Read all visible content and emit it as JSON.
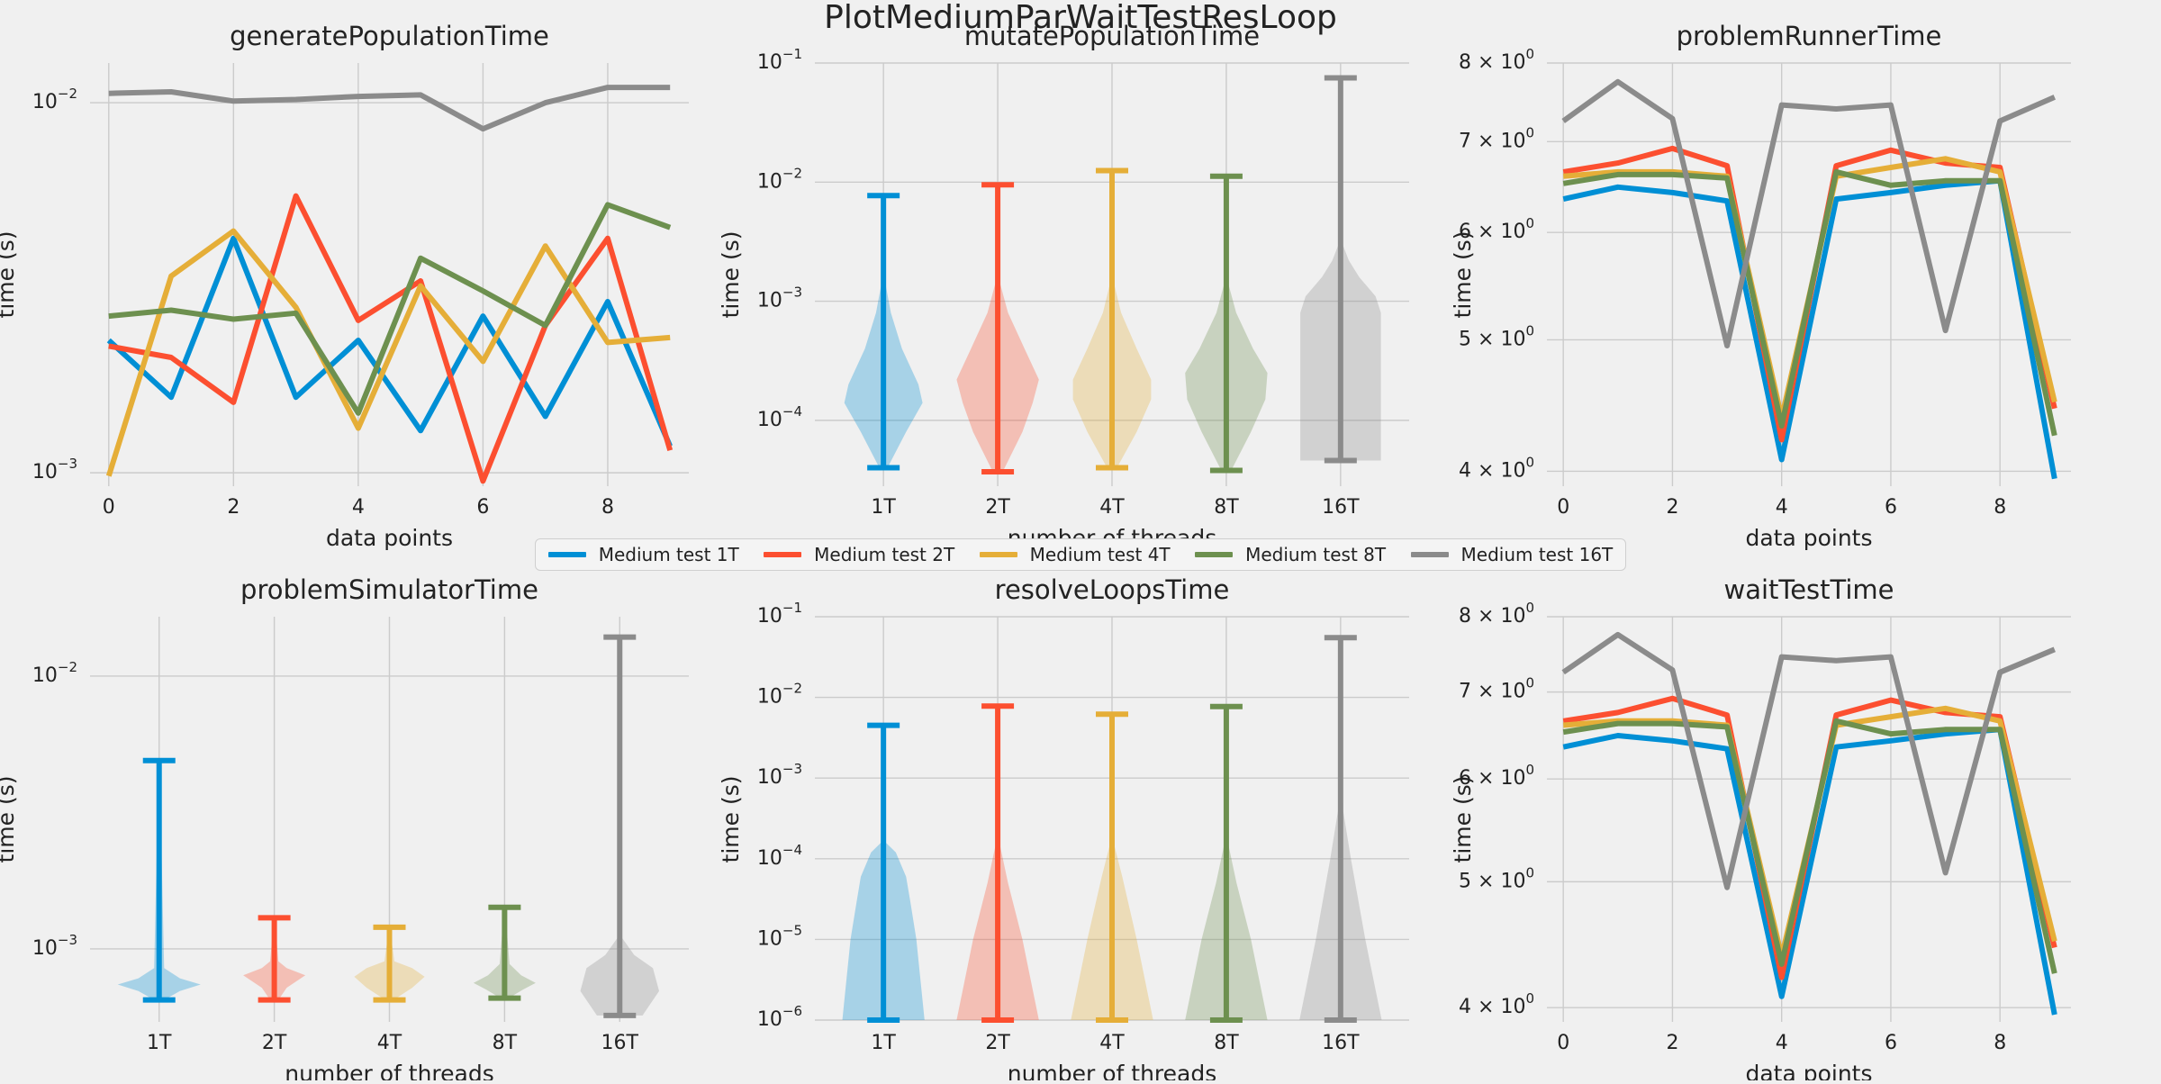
{
  "figure": {
    "title": "PlotMediumParWaitTestResLoop",
    "background": "#f0f0f0",
    "grid_color": "#cbcbcb"
  },
  "legend": {
    "placement": "center",
    "entries": [
      {
        "label": "Medium test 1T",
        "color": "#008fd5"
      },
      {
        "label": "Medium test 2T",
        "color": "#fc4f30"
      },
      {
        "label": "Medium test 4T",
        "color": "#e5ae38"
      },
      {
        "label": "Medium test 8T",
        "color": "#6d904f"
      },
      {
        "label": "Medium test 16T",
        "color": "#8b8b8b"
      }
    ]
  },
  "chart_data": [
    {
      "type": "line",
      "title": "generatePopulationTime",
      "xlabel": "data points",
      "ylabel": "time (s)",
      "yscale": "log",
      "xlim": [
        -0.3,
        9.3
      ],
      "ylim": [
        0.00092,
        0.0128
      ],
      "xticks": [
        0,
        2,
        4,
        6,
        8
      ],
      "yticks": [
        {
          "value": 0.001,
          "base": "10",
          "exp": "−3"
        },
        {
          "value": 0.01,
          "base": "10",
          "exp": "−2"
        }
      ],
      "grid": true,
      "x": [
        0,
        1,
        2,
        3,
        4,
        5,
        6,
        7,
        8,
        9
      ],
      "series": [
        {
          "name": "Medium test 1T",
          "color": "#008fd5",
          "values": [
            0.00228,
            0.0016,
            0.0043,
            0.0016,
            0.00228,
            0.0013,
            0.00265,
            0.00142,
            0.0029,
            0.00118
          ]
        },
        {
          "name": "Medium test 2T",
          "color": "#fc4f30",
          "values": [
            0.0022,
            0.00205,
            0.00155,
            0.0056,
            0.00258,
            0.0033,
            0.00095,
            0.0025,
            0.0043,
            0.00115
          ]
        },
        {
          "name": "Medium test 4T",
          "color": "#e5ae38",
          "values": [
            0.00098,
            0.0034,
            0.0045,
            0.0028,
            0.00132,
            0.0032,
            0.002,
            0.0041,
            0.00225,
            0.00232
          ]
        },
        {
          "name": "Medium test 8T",
          "color": "#6d904f",
          "values": [
            0.00265,
            0.00275,
            0.0026,
            0.0027,
            0.00145,
            0.0038,
            0.0031,
            0.0025,
            0.0053,
            0.0046
          ]
        },
        {
          "name": "Medium test 16T",
          "color": "#8b8b8b",
          "values": [
            0.0106,
            0.0107,
            0.0101,
            0.0102,
            0.0104,
            0.0105,
            0.0085,
            0.01,
            0.011,
            0.011
          ]
        }
      ]
    },
    {
      "type": "violin",
      "title": "mutatePopulationTime",
      "xlabel": "number of threads",
      "ylabel": "time (s)",
      "yscale": "log",
      "categories": [
        "1T",
        "2T",
        "4T",
        "8T",
        "16T"
      ],
      "ylim": [
        2.8e-05,
        0.1
      ],
      "yticks": [
        {
          "value": 0.0001,
          "base": "10",
          "exp": "−4"
        },
        {
          "value": 0.001,
          "base": "10",
          "exp": "−3"
        },
        {
          "value": 0.01,
          "base": "10",
          "exp": "−2"
        },
        {
          "value": 0.1,
          "base": "10",
          "exp": "−1"
        }
      ],
      "grid": true,
      "series": [
        {
          "name": "1T",
          "color": "#008fd5",
          "min": 4e-05,
          "max": 0.0077,
          "profile": [
            [
              4e-05,
              0.1
            ],
            [
              8e-05,
              0.55
            ],
            [
              0.00014,
              0.95
            ],
            [
              0.0002,
              0.85
            ],
            [
              0.0004,
              0.45
            ],
            [
              0.0008,
              0.18
            ],
            [
              0.0014,
              0.05
            ],
            [
              0.0077,
              0.01
            ]
          ]
        },
        {
          "name": "2T",
          "color": "#fc4f30",
          "min": 3.7e-05,
          "max": 0.0095,
          "profile": [
            [
              3.7e-05,
              0.12
            ],
            [
              8e-05,
              0.6
            ],
            [
              0.00014,
              0.85
            ],
            [
              0.00022,
              1.0
            ],
            [
              0.0004,
              0.65
            ],
            [
              0.0008,
              0.25
            ],
            [
              0.0014,
              0.06
            ],
            [
              0.0095,
              0.01
            ]
          ]
        },
        {
          "name": "4T",
          "color": "#e5ae38",
          "min": 4e-05,
          "max": 0.0125,
          "profile": [
            [
              4e-05,
              0.12
            ],
            [
              8e-05,
              0.6
            ],
            [
              0.00015,
              0.95
            ],
            [
              0.00022,
              0.95
            ],
            [
              0.0004,
              0.6
            ],
            [
              0.0008,
              0.22
            ],
            [
              0.0014,
              0.05
            ],
            [
              0.0125,
              0.01
            ]
          ]
        },
        {
          "name": "8T",
          "color": "#6d904f",
          "min": 3.8e-05,
          "max": 0.0112,
          "profile": [
            [
              3.8e-05,
              0.12
            ],
            [
              8e-05,
              0.6
            ],
            [
              0.00015,
              0.95
            ],
            [
              0.00025,
              1.0
            ],
            [
              0.0004,
              0.65
            ],
            [
              0.0008,
              0.24
            ],
            [
              0.0014,
              0.05
            ],
            [
              0.0112,
              0.01
            ]
          ]
        },
        {
          "name": "16T",
          "color": "#8b8b8b",
          "min": 4.6e-05,
          "max": 0.075,
          "profile": [
            [
              4.6e-05,
              0.98
            ],
            [
              0.0008,
              0.98
            ],
            [
              0.0011,
              0.85
            ],
            [
              0.0016,
              0.45
            ],
            [
              0.0022,
              0.2
            ],
            [
              0.003,
              0.05
            ],
            [
              0.075,
              0.01
            ]
          ]
        }
      ]
    },
    {
      "type": "line",
      "title": "problemRunnerTime",
      "xlabel": "data points",
      "ylabel": "time (s)",
      "yscale": "log",
      "xlim": [
        -0.3,
        9.3
      ],
      "ylim": [
        3.9,
        8.0
      ],
      "xticks": [
        0,
        2,
        4,
        6,
        8
      ],
      "yticks": [
        {
          "value": 4,
          "base": "4 × 10",
          "exp": "0"
        },
        {
          "value": 5,
          "base": "5 × 10",
          "exp": "0"
        },
        {
          "value": 6,
          "base": "6 × 10",
          "exp": "0"
        },
        {
          "value": 7,
          "base": "7 × 10",
          "exp": "0"
        },
        {
          "value": 8,
          "base": "8 × 10",
          "exp": "0"
        }
      ],
      "grid": true,
      "x": [
        0,
        1,
        2,
        3,
        4,
        5,
        6,
        7,
        8,
        9
      ],
      "series": [
        {
          "name": "Medium test 1T",
          "color": "#008fd5",
          "values": [
            6.35,
            6.48,
            6.42,
            6.33,
            4.08,
            6.35,
            6.42,
            6.5,
            6.55,
            3.95
          ]
        },
        {
          "name": "Medium test 2T",
          "color": "#fc4f30",
          "values": [
            6.65,
            6.75,
            6.92,
            6.72,
            4.22,
            6.72,
            6.9,
            6.75,
            6.7,
            4.45
          ]
        },
        {
          "name": "Medium test 4T",
          "color": "#e5ae38",
          "values": [
            6.6,
            6.65,
            6.65,
            6.6,
            4.38,
            6.6,
            6.7,
            6.8,
            6.65,
            4.5
          ]
        },
        {
          "name": "Medium test 8T",
          "color": "#6d904f",
          "values": [
            6.52,
            6.62,
            6.62,
            6.58,
            4.32,
            6.65,
            6.5,
            6.55,
            6.55,
            4.25
          ]
        },
        {
          "name": "Medium test 16T",
          "color": "#8b8b8b",
          "values": [
            7.25,
            7.75,
            7.28,
            4.95,
            7.45,
            7.4,
            7.45,
            5.08,
            7.25,
            7.55
          ]
        }
      ]
    },
    {
      "type": "violin",
      "title": "problemSimulatorTime",
      "xlabel": "number of threads",
      "ylabel": "time (s)",
      "yscale": "log",
      "categories": [
        "1T",
        "2T",
        "4T",
        "8T",
        "16T"
      ],
      "ylim": [
        0.00054,
        0.0165
      ],
      "yticks": [
        {
          "value": 0.001,
          "base": "10",
          "exp": "−3"
        },
        {
          "value": 0.01,
          "base": "10",
          "exp": "−2"
        }
      ],
      "grid": true,
      "series": [
        {
          "name": "1T",
          "color": "#008fd5",
          "min": 0.00065,
          "max": 0.0049,
          "profile": [
            [
              0.00065,
              0.12
            ],
            [
              0.0007,
              0.5
            ],
            [
              0.00074,
              1.0
            ],
            [
              0.00078,
              0.5
            ],
            [
              0.00085,
              0.12
            ],
            [
              0.0049,
              0.01
            ]
          ]
        },
        {
          "name": "2T",
          "color": "#fc4f30",
          "min": 0.00065,
          "max": 0.0013,
          "profile": [
            [
              0.00065,
              0.1
            ],
            [
              0.00072,
              0.3
            ],
            [
              0.0008,
              0.75
            ],
            [
              0.00085,
              0.3
            ],
            [
              0.0009,
              0.1
            ],
            [
              0.0013,
              0.01
            ]
          ]
        },
        {
          "name": "4T",
          "color": "#e5ae38",
          "min": 0.00065,
          "max": 0.0012,
          "profile": [
            [
              0.00065,
              0.1
            ],
            [
              0.00072,
              0.55
            ],
            [
              0.00079,
              0.85
            ],
            [
              0.00085,
              0.55
            ],
            [
              0.0009,
              0.12
            ],
            [
              0.0012,
              0.01
            ]
          ]
        },
        {
          "name": "8T",
          "color": "#6d904f",
          "min": 0.00066,
          "max": 0.00142,
          "profile": [
            [
              0.00066,
              0.1
            ],
            [
              0.00071,
              0.45
            ],
            [
              0.00075,
              0.75
            ],
            [
              0.0008,
              0.4
            ],
            [
              0.00088,
              0.12
            ],
            [
              0.00142,
              0.01
            ]
          ]
        },
        {
          "name": "16T",
          "color": "#8b8b8b",
          "min": 0.00057,
          "max": 0.0139,
          "profile": [
            [
              0.00057,
              0.55
            ],
            [
              0.0007,
              0.95
            ],
            [
              0.00085,
              0.8
            ],
            [
              0.00095,
              0.35
            ],
            [
              0.0011,
              0.05
            ],
            [
              0.0139,
              0.01
            ]
          ]
        }
      ]
    },
    {
      "type": "violin",
      "title": "resolveLoopsTime",
      "xlabel": "number of threads",
      "ylabel": "time (s)",
      "yscale": "log",
      "categories": [
        "1T",
        "2T",
        "4T",
        "8T",
        "16T"
      ],
      "ylim": [
        9.5e-07,
        0.1
      ],
      "yticks": [
        {
          "value": 1e-06,
          "base": "10",
          "exp": "−6"
        },
        {
          "value": 1e-05,
          "base": "10",
          "exp": "−5"
        },
        {
          "value": 0.0001,
          "base": "10",
          "exp": "−4"
        },
        {
          "value": 0.001,
          "base": "10",
          "exp": "−3"
        },
        {
          "value": 0.01,
          "base": "10",
          "exp": "−2"
        },
        {
          "value": 0.1,
          "base": "10",
          "exp": "−1"
        }
      ],
      "grid": true,
      "series": [
        {
          "name": "1T",
          "color": "#008fd5",
          "min": 1e-06,
          "max": 0.0045,
          "profile": [
            [
              1e-06,
              1.0
            ],
            [
              1e-05,
              0.8
            ],
            [
              3e-05,
              0.65
            ],
            [
              6e-05,
              0.55
            ],
            [
              0.00012,
              0.3
            ],
            [
              0.00016,
              0.05
            ],
            [
              0.0045,
              0.01
            ]
          ]
        },
        {
          "name": "2T",
          "color": "#fc4f30",
          "min": 1e-06,
          "max": 0.0078,
          "profile": [
            [
              1e-06,
              1.0
            ],
            [
              1e-05,
              0.6
            ],
            [
              5e-05,
              0.25
            ],
            [
              0.00015,
              0.05
            ],
            [
              0.0078,
              0.01
            ]
          ]
        },
        {
          "name": "4T",
          "color": "#e5ae38",
          "min": 1e-06,
          "max": 0.0062,
          "profile": [
            [
              1e-06,
              1.0
            ],
            [
              1e-05,
              0.6
            ],
            [
              6e-05,
              0.25
            ],
            [
              0.00015,
              0.05
            ],
            [
              0.0062,
              0.01
            ]
          ]
        },
        {
          "name": "8T",
          "color": "#6d904f",
          "min": 1e-06,
          "max": 0.0077,
          "profile": [
            [
              1e-06,
              1.0
            ],
            [
              1e-05,
              0.6
            ],
            [
              5e-05,
              0.25
            ],
            [
              0.00015,
              0.05
            ],
            [
              0.0077,
              0.01
            ]
          ]
        },
        {
          "name": "16T",
          "color": "#8b8b8b",
          "min": 1e-06,
          "max": 0.055,
          "profile": [
            [
              1e-06,
              1.0
            ],
            [
              1e-05,
              0.6
            ],
            [
              0.0001,
              0.25
            ],
            [
              0.0004,
              0.06
            ],
            [
              0.055,
              0.01
            ]
          ]
        }
      ]
    },
    {
      "type": "line",
      "title": "waitTestTime",
      "xlabel": "data points",
      "ylabel": "time (s)",
      "yscale": "log",
      "xlim": [
        -0.3,
        9.3
      ],
      "ylim": [
        3.9,
        8.0
      ],
      "xticks": [
        0,
        2,
        4,
        6,
        8
      ],
      "yticks": [
        {
          "value": 4,
          "base": "4 × 10",
          "exp": "0"
        },
        {
          "value": 5,
          "base": "5 × 10",
          "exp": "0"
        },
        {
          "value": 6,
          "base": "6 × 10",
          "exp": "0"
        },
        {
          "value": 7,
          "base": "7 × 10",
          "exp": "0"
        },
        {
          "value": 8,
          "base": "8 × 10",
          "exp": "0"
        }
      ],
      "grid": true,
      "x": [
        0,
        1,
        2,
        3,
        4,
        5,
        6,
        7,
        8,
        9
      ],
      "series": [
        {
          "name": "Medium test 1T",
          "color": "#008fd5",
          "values": [
            6.35,
            6.48,
            6.42,
            6.33,
            4.08,
            6.35,
            6.42,
            6.5,
            6.55,
            3.95
          ]
        },
        {
          "name": "Medium test 2T",
          "color": "#fc4f30",
          "values": [
            6.65,
            6.75,
            6.92,
            6.72,
            4.22,
            6.72,
            6.9,
            6.75,
            6.7,
            4.45
          ]
        },
        {
          "name": "Medium test 4T",
          "color": "#e5ae38",
          "values": [
            6.6,
            6.65,
            6.65,
            6.6,
            4.38,
            6.6,
            6.7,
            6.8,
            6.65,
            4.5
          ]
        },
        {
          "name": "Medium test 8T",
          "color": "#6d904f",
          "values": [
            6.52,
            6.62,
            6.62,
            6.58,
            4.32,
            6.65,
            6.5,
            6.55,
            6.55,
            4.25
          ]
        },
        {
          "name": "Medium test 16T",
          "color": "#8b8b8b",
          "values": [
            7.25,
            7.75,
            7.28,
            4.95,
            7.45,
            7.4,
            7.45,
            5.08,
            7.25,
            7.55
          ]
        }
      ]
    }
  ]
}
